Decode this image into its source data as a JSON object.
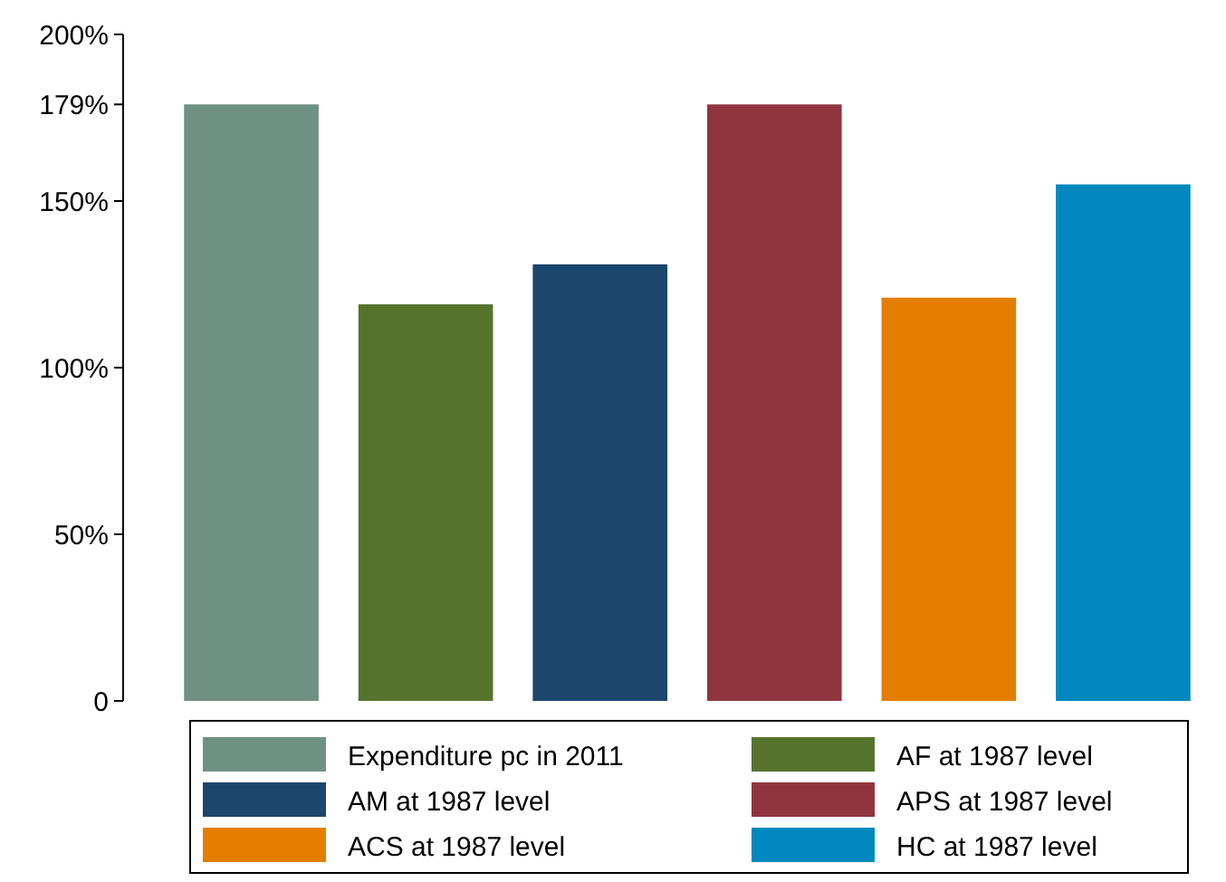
{
  "chart_data": {
    "type": "bar",
    "stacked": true,
    "categories": [
      null,
      null,
      null,
      null,
      null,
      null
    ],
    "series": [
      {
        "name": "Expenditure pc in 2011",
        "color": "#6f9183",
        "values": [
          179,
          null,
          null,
          null,
          null,
          null
        ]
      },
      {
        "name": "AF at 1987 level",
        "color": "#56742e",
        "values": [
          null,
          119,
          null,
          null,
          null,
          null
        ]
      },
      {
        "name": "AM at 1987 level",
        "color": "#1c466d",
        "values": [
          null,
          null,
          131,
          null,
          null,
          null
        ]
      },
      {
        "name": "APS at 1987 level",
        "color": "#90353e",
        "values": [
          null,
          null,
          null,
          179,
          null,
          null
        ]
      },
      {
        "name": "ACS at 1987 level",
        "color": "#e37e00",
        "values": [
          null,
          null,
          null,
          null,
          121,
          null
        ]
      },
      {
        "name": "HC at 1987 level",
        "color": "#0189bd",
        "values": [
          null,
          null,
          null,
          null,
          null,
          155
        ]
      }
    ],
    "ylim": [
      0,
      200
    ],
    "yticks": [
      {
        "value": 0,
        "label": "0"
      },
      {
        "value": 50,
        "label": "50%"
      },
      {
        "value": 100,
        "label": "100%"
      },
      {
        "value": 150,
        "label": "150%"
      },
      {
        "value": 179,
        "label": "179%"
      },
      {
        "value": 200,
        "label": "200%"
      }
    ],
    "grid": false,
    "legend": "bottom"
  }
}
